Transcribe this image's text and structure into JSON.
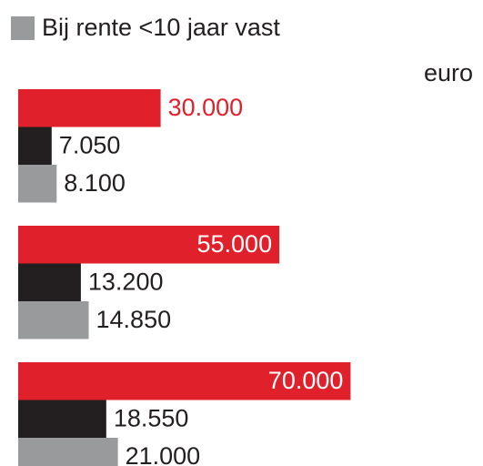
{
  "chart_data": {
    "type": "bar",
    "orientation": "horizontal",
    "unit": "euro",
    "categories": [
      null,
      null,
      null
    ],
    "series": [
      {
        "color": "#e0202a",
        "values": [
          30000,
          55000,
          70000
        ],
        "value_labels": [
          "30.000",
          "55.000",
          "70.000"
        ]
      },
      {
        "color": "#231f20",
        "values": [
          7050,
          13200,
          18550
        ],
        "value_labels": [
          "7.050",
          "13.200",
          "18.550"
        ]
      },
      {
        "name": "Bij rente <10 jaar vast",
        "color": "#999a9c",
        "values": [
          8100,
          14850,
          21000
        ],
        "value_labels": [
          "8.100",
          "14.850",
          "21.000"
        ]
      }
    ]
  }
}
